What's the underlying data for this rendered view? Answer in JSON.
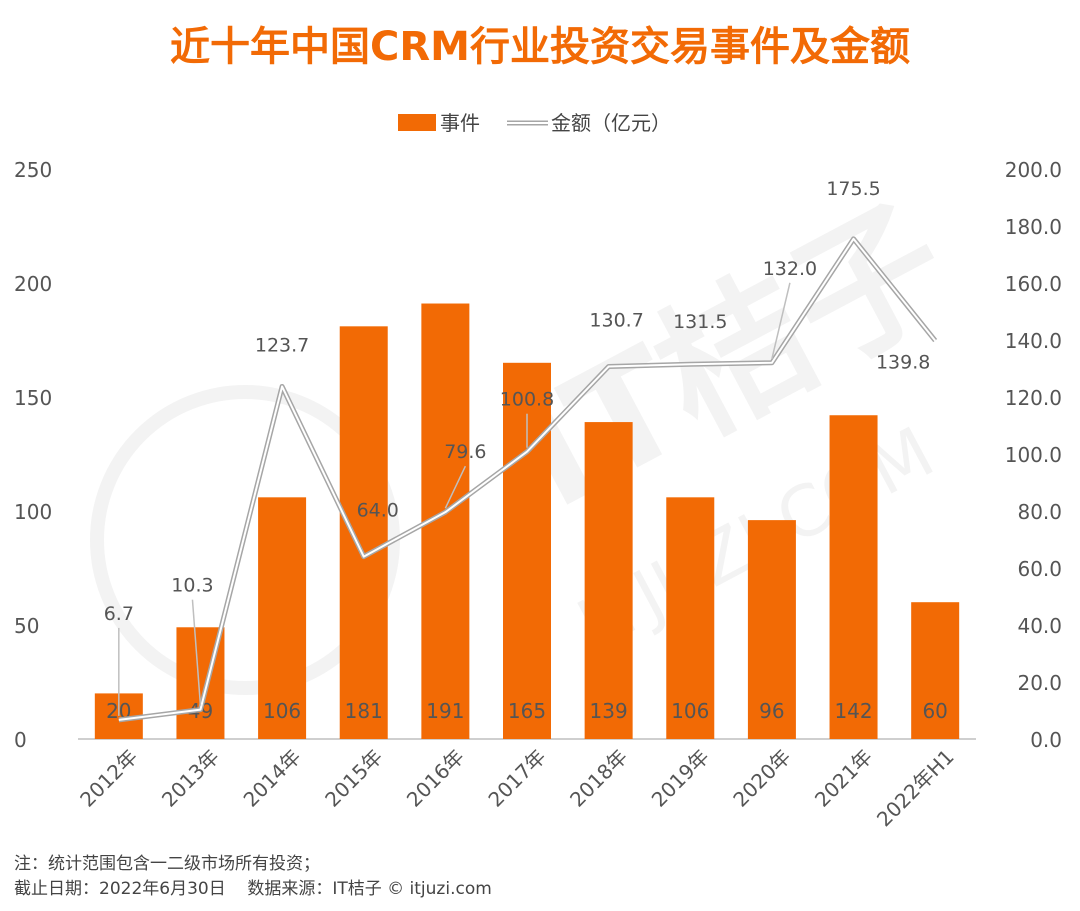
{
  "chart_data": {
    "type": "bar+line",
    "title": "近十年中国CRM行业投资交易事件及金额",
    "categories": [
      "2012年",
      "2013年",
      "2014年",
      "2015年",
      "2016年",
      "2017年",
      "2018年",
      "2019年",
      "2020年",
      "2021年",
      "2022年H1"
    ],
    "series": [
      {
        "name": "事件",
        "type": "bar",
        "axis": "left",
        "values": [
          20,
          49,
          106,
          181,
          191,
          165,
          139,
          106,
          96,
          142,
          60
        ]
      },
      {
        "name": "金额（亿元）",
        "type": "line",
        "axis": "right",
        "values": [
          6.7,
          10.3,
          123.7,
          64.0,
          79.6,
          100.8,
          130.7,
          131.5,
          132.0,
          175.5,
          139.8
        ]
      }
    ],
    "y_left": {
      "ylim": [
        0,
        250
      ],
      "ticks": [
        "0",
        "50",
        "100",
        "150",
        "200",
        "250"
      ]
    },
    "y_right": {
      "ylim": [
        0,
        200
      ],
      "ticks": [
        "0.0",
        "20.0",
        "40.0",
        "60.0",
        "80.0",
        "100.0",
        "120.0",
        "140.0",
        "160.0",
        "180.0",
        "200.0"
      ]
    },
    "legend_position": "top-center",
    "grid": false,
    "colors": {
      "bar": "#f26a05",
      "title": "#f26a05",
      "line": "#a6a6a6"
    }
  },
  "watermark": "IT桔子 ITJUZI.COM",
  "notes": {
    "line1": "注：统计范围包含一二级市场所有投资；",
    "line2": "截止日期：2022年6月30日    数据来源：IT桔子 © itjuzi.com"
  }
}
